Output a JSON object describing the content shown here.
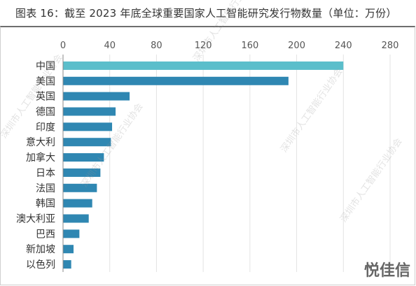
{
  "title": "图表 16：截至 2023 年底全球重要国家人工智能研究发行物数量（单位：万份）",
  "watermark": "深圳市人工智能行业协会",
  "logo": "悦佳信",
  "colors": {
    "highlight": "#5bbecb",
    "bar": "#2f87b2",
    "grid": "#e3e3e3",
    "axis": "#8a8a8a"
  },
  "chart_data": {
    "type": "bar",
    "orientation": "horizontal",
    "title": "图表 16：截至 2023 年底全球重要国家人工智能研究发行物数量（单位：万份）",
    "categories": [
      "中国",
      "美国",
      "英国",
      "德国",
      "印度",
      "意大利",
      "加拿大",
      "日本",
      "法国",
      "韩国",
      "澳大利亚",
      "巴西",
      "新加坡",
      "以色列"
    ],
    "values": [
      240,
      193,
      57,
      45,
      42,
      41,
      35,
      32,
      29,
      25,
      22,
      14,
      9,
      7
    ],
    "xlim": [
      0,
      280
    ],
    "xticks": [
      "0",
      "40",
      "80",
      "120",
      "160",
      "200",
      "240",
      "280"
    ],
    "xlabel": "",
    "ylabel": "",
    "grid": "vertical",
    "legend": "none"
  }
}
